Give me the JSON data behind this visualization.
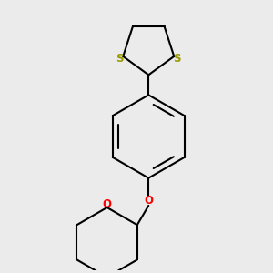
{
  "bg_color": "#ebebeb",
  "bond_color": "#000000",
  "sulfur_color": "#999900",
  "oxygen_color": "#ff0000",
  "line_width": 1.5,
  "figsize": [
    3.0,
    3.0
  ],
  "dpi": 100,
  "xlim": [
    0.0,
    1.0
  ],
  "ylim": [
    0.0,
    1.0
  ]
}
